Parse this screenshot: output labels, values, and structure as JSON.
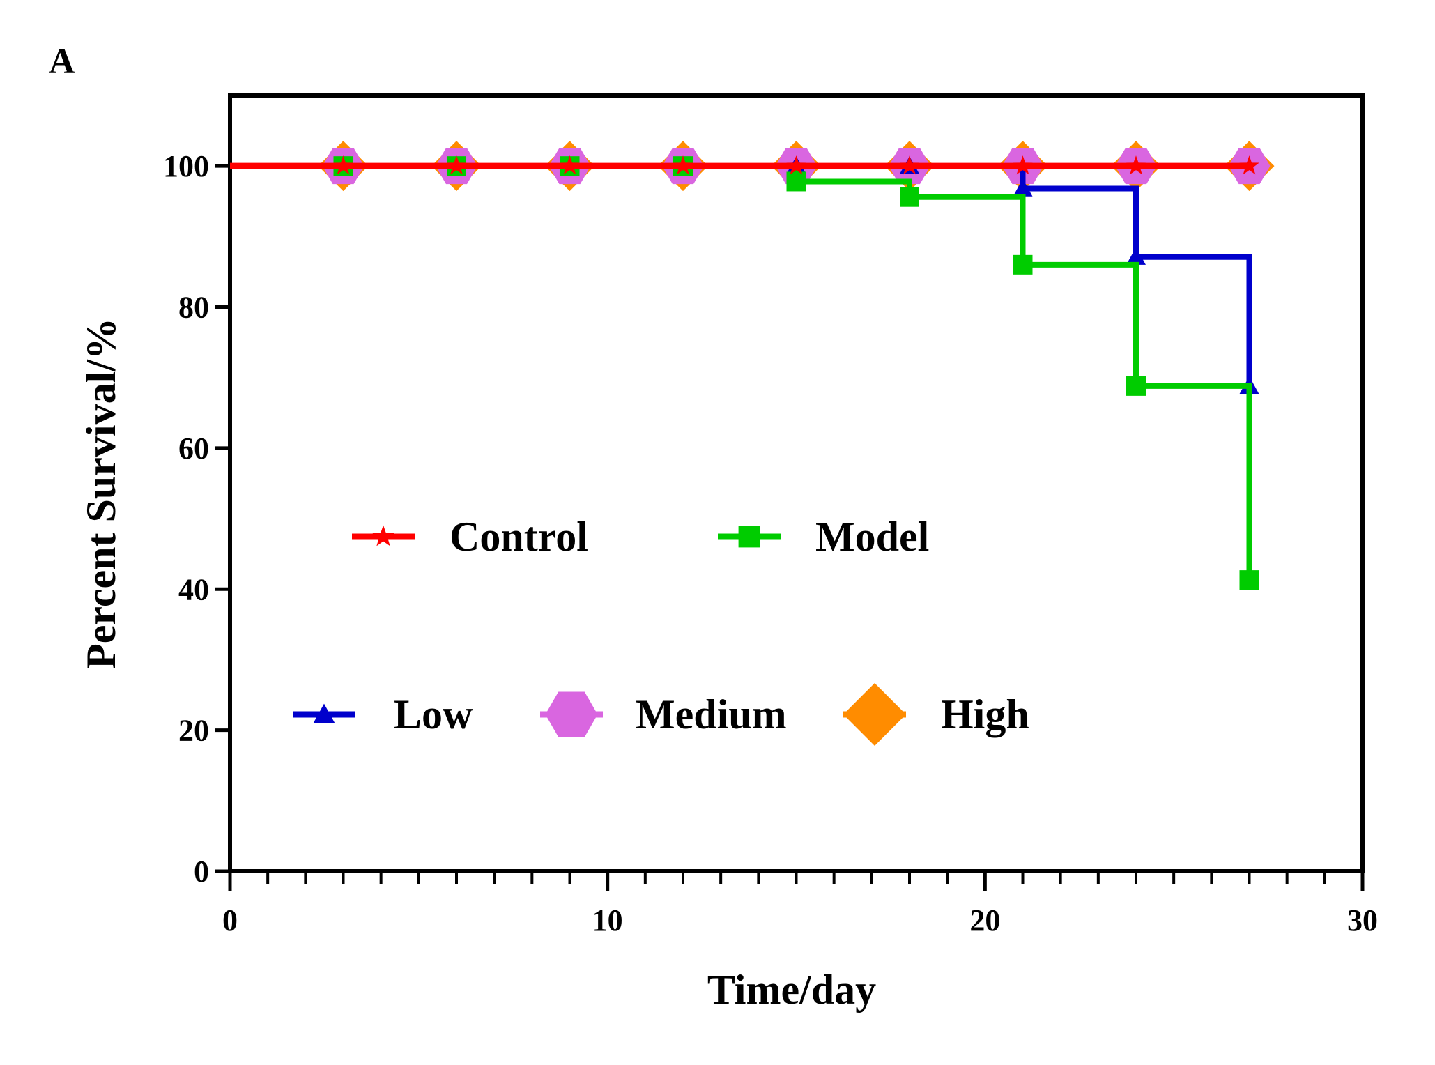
{
  "panel_label": "A",
  "colors": {
    "control": "#ff0000",
    "model": "#00cc00",
    "low": "#0000cc",
    "medium": "#d966e0",
    "high": "#ff8c00"
  },
  "chart_data": {
    "type": "line",
    "title": "",
    "xlabel": "Time/day",
    "ylabel": "Percent Survival/%",
    "xlim": [
      0,
      30
    ],
    "ylim": [
      0,
      110
    ],
    "x_ticks": [
      0,
      10,
      20,
      30
    ],
    "y_ticks": [
      0,
      20,
      40,
      60,
      80,
      100
    ],
    "x_minor_step": 1,
    "grid": false,
    "legend": "inside-center",
    "step": true,
    "series": [
      {
        "name": "Control",
        "key": "control",
        "marker": "star",
        "x": [
          0,
          3,
          6,
          9,
          12,
          15,
          18,
          21,
          24,
          27
        ],
        "y": [
          100,
          100,
          100,
          100,
          100,
          100,
          100,
          100,
          100,
          100
        ]
      },
      {
        "name": "Model",
        "key": "model",
        "marker": "square",
        "x": [
          0,
          3,
          6,
          9,
          12,
          15,
          18,
          21,
          24,
          27,
          27
        ],
        "y": [
          100,
          100,
          100,
          100,
          100,
          97.8,
          95.6,
          86,
          68.8,
          68.8,
          41.3
        ],
        "marker_points": [
          [
            3,
            100
          ],
          [
            6,
            100
          ],
          [
            9,
            100
          ],
          [
            12,
            100
          ],
          [
            15,
            97.8
          ],
          [
            18,
            95.6
          ],
          [
            21,
            86
          ],
          [
            24,
            68.8
          ],
          [
            27,
            41.3
          ]
        ]
      },
      {
        "name": "Low",
        "key": "low",
        "marker": "triangle",
        "x": [
          0,
          3,
          6,
          9,
          12,
          15,
          18,
          21,
          24,
          27
        ],
        "y": [
          100,
          100,
          100,
          100,
          100,
          100,
          100,
          96.8,
          87.1,
          68.8
        ]
      },
      {
        "name": "Medium",
        "key": "medium",
        "marker": "hexagon",
        "x": [
          0,
          3,
          6,
          9,
          12,
          15,
          18,
          21,
          24,
          27
        ],
        "y": [
          100,
          100,
          100,
          100,
          100,
          100,
          100,
          100,
          100,
          100
        ]
      },
      {
        "name": "High",
        "key": "high",
        "marker": "diamond",
        "x": [
          0,
          3,
          6,
          9,
          12,
          15,
          18,
          21,
          24,
          27
        ],
        "y": [
          100,
          100,
          100,
          100,
          100,
          100,
          100,
          100,
          100,
          100
        ]
      }
    ],
    "legend_rows": [
      [
        "control",
        "model"
      ],
      [
        "low",
        "medium",
        "high"
      ]
    ]
  }
}
